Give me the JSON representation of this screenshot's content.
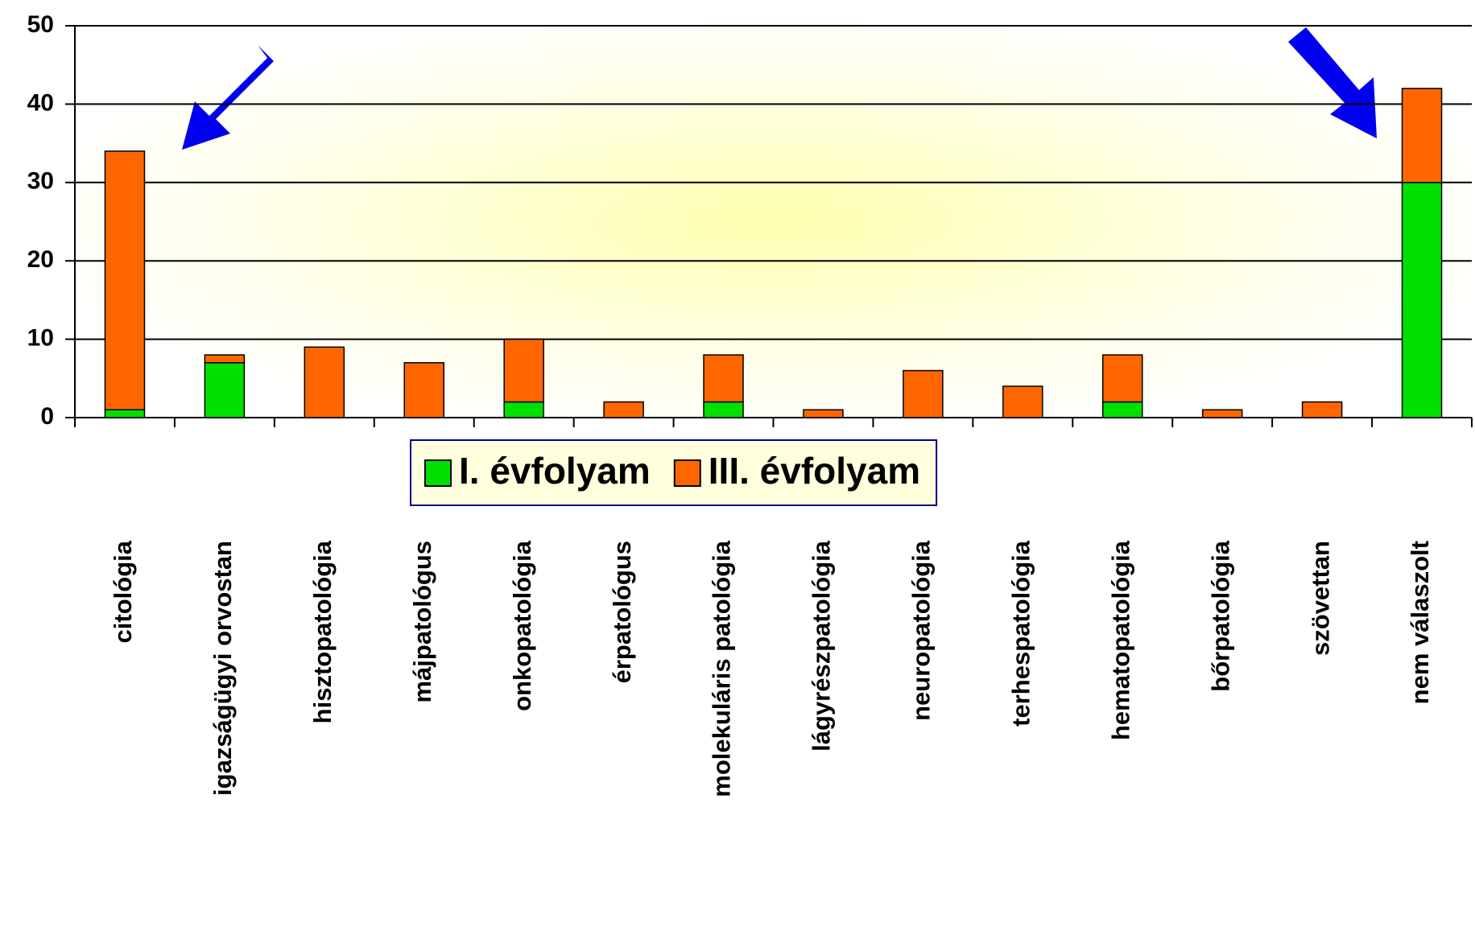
{
  "chart_data": {
    "type": "stacked_bar",
    "categories": [
      "citológia",
      "igazságügyi orvostan",
      "hisztopatológia",
      "májpatológus",
      "onkopatológia",
      "érpatológus",
      "molekuláris patológia",
      "lágyrészpatológia",
      "neuropatológia",
      "terhespatológia",
      "hematopatológia",
      "bőrpatológia",
      "szövettan",
      "nem válaszolt"
    ],
    "series": [
      {
        "name": "I. évfolyam",
        "color": "#00e000",
        "values": [
          1,
          7,
          0,
          0,
          2,
          0,
          2,
          0,
          0,
          0,
          2,
          0,
          0,
          30
        ]
      },
      {
        "name": "III. évfolyam",
        "color": "#ff6600",
        "values": [
          33,
          1,
          9,
          7,
          8,
          2,
          6,
          1,
          6,
          4,
          6,
          1,
          2,
          12
        ]
      }
    ],
    "ylim": [
      0,
      50
    ],
    "yticks": [
      0,
      10,
      20,
      30,
      40,
      50
    ],
    "grid": true,
    "legend": "bottom"
  }
}
